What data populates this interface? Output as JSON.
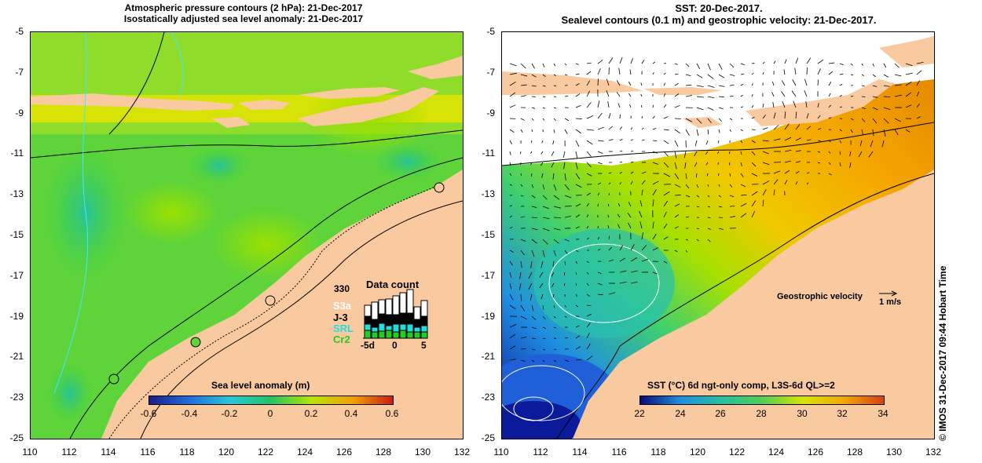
{
  "left_map": {
    "title_line1": "Atmospheric pressure contours (2 hPa): 21-Dec-2017",
    "title_line2": "Isostatically adjusted sea level anomaly: 21-Dec-2017",
    "y_ticks": [
      "-5",
      "-7",
      "-9",
      "-11",
      "-13",
      "-15",
      "-17",
      "-19",
      "-21",
      "-23",
      "-25"
    ],
    "x_ticks": [
      "110",
      "112",
      "114",
      "116",
      "118",
      "120",
      "122",
      "124",
      "126",
      "128",
      "130",
      "132"
    ],
    "colorbar": {
      "title": "Sea level anomaly (m)",
      "ticks": [
        "-0.6",
        "-0.4",
        "-0.2",
        "0",
        "0.2",
        "0.4",
        "0.6"
      ],
      "range": [
        -0.6,
        0.6
      ]
    },
    "data_count": {
      "title": "Data count",
      "max": "330",
      "missions": [
        "S3a",
        "J-3",
        "SRL",
        "Cr2"
      ],
      "mission_colors": [
        "#ffffff",
        "#000000",
        "#22dddd",
        "#22cc22"
      ],
      "axis_ticks": [
        "-5d",
        "0",
        "5"
      ]
    }
  },
  "right_map": {
    "title_line1": "SST: 20-Dec-2017.",
    "title_line2": "Sealevel contours (0.1 m) and geostrophic velocity: 21-Dec-2017.",
    "y_ticks": [
      "-5",
      "-7",
      "-9",
      "-11",
      "-13",
      "-15",
      "-17",
      "-19",
      "-21",
      "-23",
      "-25"
    ],
    "x_ticks": [
      "110",
      "112",
      "114",
      "116",
      "118",
      "120",
      "122",
      "124",
      "126",
      "128",
      "130",
      "132"
    ],
    "colorbar": {
      "title": "SST (°C) 6d ngt-only comp, L3S-6d QL>=2",
      "ticks": [
        "22",
        "24",
        "26",
        "28",
        "30",
        "32",
        "34"
      ],
      "range": [
        22,
        34
      ]
    },
    "velocity_legend": {
      "label": "Geostrophic velocity",
      "scale": "1 m/s"
    }
  },
  "stamp": "© IMOS 31-Dec-2017 09:44 Hobart Time",
  "colors": {
    "land": "#f9c9a0",
    "sla_ramp": [
      "#1b1b8c",
      "#1f6fe0",
      "#28c8d8",
      "#22c55e",
      "#b8e600",
      "#f5a000",
      "#c81e10"
    ],
    "sst_ramp": [
      "#0a0a7a",
      "#1f8fe0",
      "#26c0a0",
      "#4fd04f",
      "#d8e400",
      "#f5a800",
      "#d84010"
    ]
  }
}
